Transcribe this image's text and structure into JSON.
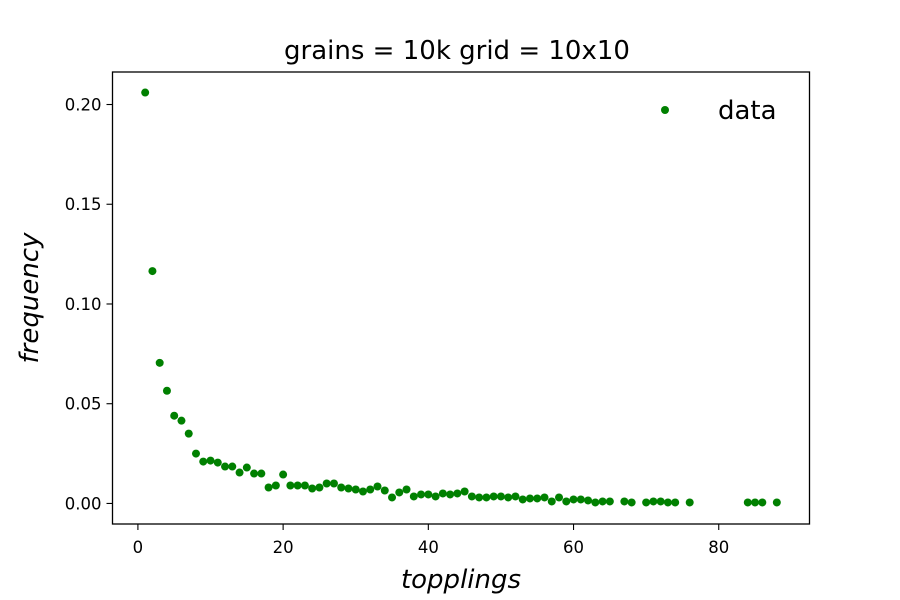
{
  "chart_data": {
    "type": "scatter",
    "title": "grains = 10k grid = 10x10",
    "xlabel": "topplings",
    "ylabel": "frequency",
    "xlim": [
      -3.5,
      92.5
    ],
    "ylim": [
      -0.0103,
      0.2163
    ],
    "xticks": [
      0,
      20,
      40,
      60,
      80
    ],
    "xtick_labels": [
      "0",
      "20",
      "40",
      "60",
      "80"
    ],
    "yticks": [
      0.0,
      0.05,
      0.1,
      0.15,
      0.2
    ],
    "ytick_labels": [
      "0.00",
      "0.05",
      "0.10",
      "0.15",
      "0.20"
    ],
    "grid": false,
    "legend_position": "upper right",
    "series": [
      {
        "name": "data",
        "color": "#008000",
        "marker": "circle",
        "x": [
          1,
          2,
          3,
          4,
          5,
          6,
          7,
          8,
          9,
          10,
          11,
          12,
          13,
          14,
          15,
          16,
          17,
          18,
          19,
          20,
          21,
          22,
          23,
          24,
          25,
          26,
          27,
          28,
          29,
          30,
          31,
          32,
          33,
          34,
          35,
          36,
          37,
          38,
          39,
          40,
          41,
          42,
          43,
          44,
          45,
          46,
          47,
          48,
          49,
          50,
          51,
          52,
          53,
          54,
          55,
          56,
          57,
          58,
          59,
          60,
          61,
          62,
          63,
          64,
          65,
          67,
          68,
          70,
          71,
          72,
          73,
          74,
          76,
          84,
          85,
          86,
          88
        ],
        "y": [
          0.206,
          0.1165,
          0.0705,
          0.0565,
          0.044,
          0.0415,
          0.035,
          0.025,
          0.021,
          0.0215,
          0.0205,
          0.0185,
          0.0185,
          0.0155,
          0.018,
          0.015,
          0.015,
          0.008,
          0.009,
          0.0145,
          0.009,
          0.009,
          0.009,
          0.0075,
          0.008,
          0.01,
          0.01,
          0.008,
          0.0075,
          0.007,
          0.006,
          0.007,
          0.0085,
          0.0065,
          0.003,
          0.0055,
          0.007,
          0.0035,
          0.0045,
          0.0045,
          0.0035,
          0.005,
          0.0045,
          0.005,
          0.006,
          0.0035,
          0.003,
          0.003,
          0.0035,
          0.0035,
          0.003,
          0.0035,
          0.002,
          0.0025,
          0.0025,
          0.003,
          0.001,
          0.003,
          0.001,
          0.002,
          0.002,
          0.0015,
          0.0005,
          0.001,
          0.001,
          0.001,
          0.0005,
          0.0005,
          0.001,
          0.001,
          0.0005,
          0.0005,
          0.0005,
          0.0005,
          0.0005,
          0.0005,
          0.0005
        ]
      }
    ]
  }
}
